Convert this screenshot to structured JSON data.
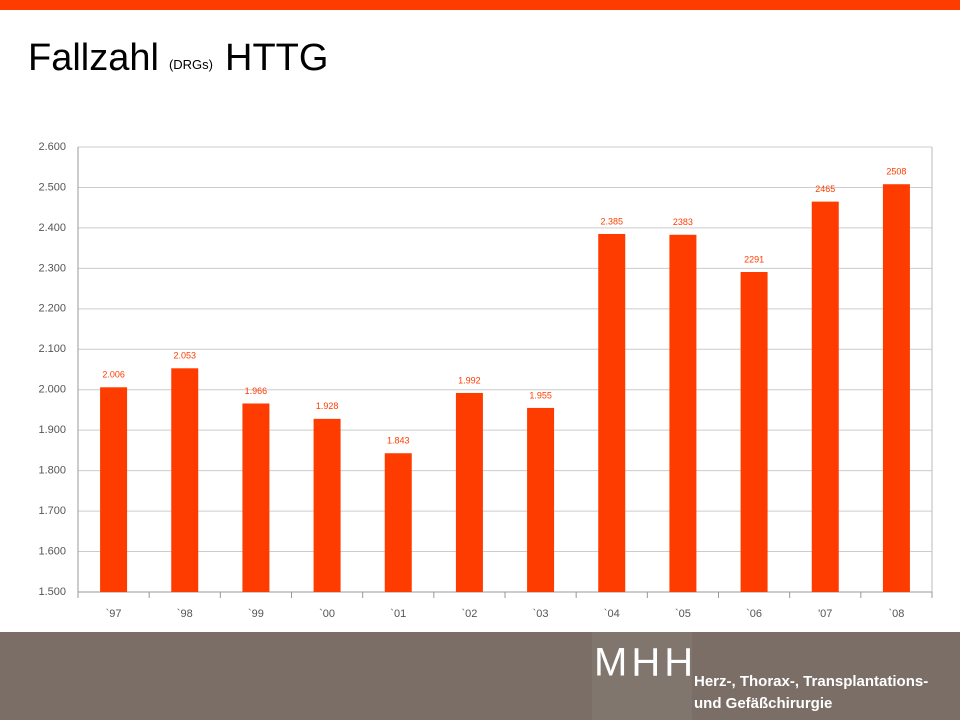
{
  "chart_data": {
    "type": "bar",
    "title": "Fallzahl",
    "subtitle": "(DRGs)",
    "title_suffix": "HTTG",
    "categories": [
      "`97",
      "`98",
      "`99",
      "`00",
      "`01",
      "`02",
      "`03",
      "`04",
      "`05",
      "`06",
      "'07",
      "`08"
    ],
    "values": [
      2006,
      2053,
      1966,
      1928,
      1843,
      1992,
      1955,
      2385,
      2383,
      2291,
      2465,
      2508
    ],
    "value_labels": [
      "2.006",
      "2.053",
      "1.966",
      "1.928",
      "1.843",
      "1.992",
      "1.955",
      "2.385",
      "2383",
      "2291",
      "2465",
      "2508"
    ],
    "color": "#ff3c00",
    "ylim": [
      1500,
      2600
    ],
    "yticks": [
      {
        "value": 1500,
        "label": "1.500"
      },
      {
        "value": 1600,
        "label": "1.600"
      },
      {
        "value": 1700,
        "label": "1.700"
      },
      {
        "value": 1800,
        "label": "1.800"
      },
      {
        "value": 1900,
        "label": "1.900"
      },
      {
        "value": 2000,
        "label": "2.000"
      },
      {
        "value": 2100,
        "label": "2.100"
      },
      {
        "value": 2200,
        "label": "2.200"
      },
      {
        "value": 2300,
        "label": "2.300"
      },
      {
        "value": 2400,
        "label": "2.400"
      },
      {
        "value": 2500,
        "label": "2.500"
      },
      {
        "value": 2600,
        "label": "2.600"
      }
    ],
    "grid": true
  },
  "footer": {
    "logo": "MHH",
    "lines": [
      "Herz-, Thorax-, Transplantations-",
      "und Gefäßchirurgie"
    ]
  }
}
